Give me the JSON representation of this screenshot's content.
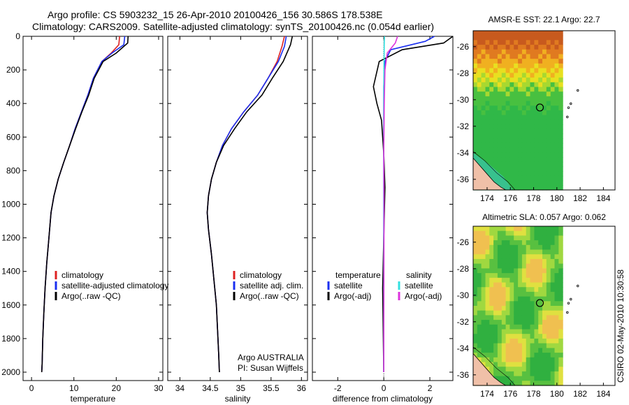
{
  "header": {
    "title_line1": "Argo profile: CS 5903232_15 26-Apr-2010 20100426_156 30.586S 178.538E",
    "title_line2": "Climatology: CARS2009. Satellite-adjusted climatology: synTS_20100426.nc (0.054d earlier)"
  },
  "footer": {
    "program": "Argo AUSTRALIA",
    "pi": "PI: Susan Wijffels",
    "stamp": "CSIRO 02-May-2010 10:30:58"
  },
  "colors": {
    "climatology": "#dd2222",
    "satellite": "#1a2ff0",
    "argo": "#000000",
    "argo_salinity": "#dd33dd",
    "satellite_salinity": "#33e0e0"
  },
  "chart_data": [
    {
      "type": "line",
      "panel": "temperature",
      "xlabel": "temperature",
      "ylabel": "",
      "xlim": [
        -2,
        31
      ],
      "ylim": [
        2050,
        0
      ],
      "y_inverted": true,
      "xticks": [
        "0",
        "10",
        "20",
        "30"
      ],
      "yticks": [
        "0",
        "200",
        "400",
        "600",
        "800",
        "1000",
        "1200",
        "1400",
        "1600",
        "1800",
        "2000"
      ],
      "legend": [
        "climatology",
        "satellite-adjusted climatology",
        "Argo(..raw -QC)"
      ],
      "series": [
        {
          "name": "climatology",
          "color": "#dd2222",
          "x": [
            20.8,
            20.6,
            18.8,
            16.6,
            14.6,
            13.3,
            11.8,
            10.3,
            9.0,
            7.6,
            6.3,
            5.3,
            4.6,
            4.1,
            3.6,
            3.2,
            2.9,
            2.65,
            2.5,
            2.4
          ],
          "y": [
            0,
            50,
            100,
            150,
            250,
            350,
            450,
            550,
            650,
            750,
            850,
            950,
            1050,
            1200,
            1350,
            1500,
            1650,
            1800,
            1950,
            2000
          ]
        },
        {
          "name": "satellite-adjusted climatology",
          "color": "#1a2ff0",
          "x": [
            22.0,
            21.8,
            19.0,
            16.6,
            14.6,
            13.3,
            11.8,
            10.3,
            9.0,
            7.6,
            6.3,
            5.3,
            4.6,
            4.1,
            3.6,
            3.2,
            2.9,
            2.65,
            2.5,
            2.4
          ],
          "y": [
            0,
            50,
            100,
            150,
            250,
            350,
            450,
            550,
            650,
            750,
            850,
            950,
            1050,
            1200,
            1350,
            1500,
            1650,
            1800,
            1950,
            2000
          ]
        },
        {
          "name": "Argo(..raw -QC)",
          "color": "#000000",
          "x": [
            22.8,
            22.7,
            20.0,
            16.9,
            14.8,
            13.5,
            11.9,
            10.4,
            9.0,
            7.6,
            6.3,
            5.3,
            4.6,
            4.1,
            3.6,
            3.2,
            2.9,
            2.65,
            2.5,
            2.4
          ],
          "y": [
            0,
            40,
            100,
            150,
            250,
            350,
            450,
            550,
            650,
            750,
            850,
            950,
            1050,
            1200,
            1350,
            1500,
            1650,
            1800,
            1950,
            2000
          ]
        }
      ]
    },
    {
      "type": "line",
      "panel": "salinity",
      "xlabel": "salinity",
      "xlim": [
        33.8,
        36.1
      ],
      "ylim": [
        2050,
        0
      ],
      "y_inverted": true,
      "xticks": [
        "34",
        "34.5",
        "35",
        "35.5",
        "36"
      ],
      "legend": [
        "climatology",
        "satellite adj. clim.",
        "Argo(..raw -QC)"
      ],
      "series": [
        {
          "name": "climatology",
          "color": "#dd2222",
          "x": [
            35.72,
            35.68,
            35.6,
            35.45,
            35.28,
            35.05,
            34.85,
            34.7,
            34.6,
            34.52,
            34.47,
            34.45,
            34.47,
            34.52,
            34.56,
            34.6,
            34.62,
            34.64,
            34.65
          ],
          "y": [
            0,
            60,
            150,
            250,
            350,
            450,
            550,
            650,
            750,
            850,
            950,
            1050,
            1150,
            1300,
            1450,
            1600,
            1750,
            1900,
            2000
          ]
        },
        {
          "name": "satellite adj. clim.",
          "color": "#1a2ff0",
          "x": [
            35.75,
            35.72,
            35.62,
            35.45,
            35.28,
            35.05,
            34.85,
            34.7,
            34.6,
            34.52,
            34.47,
            34.45,
            34.47,
            34.52,
            34.56,
            34.6,
            34.62,
            34.64,
            34.65
          ],
          "y": [
            0,
            60,
            150,
            250,
            350,
            450,
            550,
            650,
            750,
            850,
            950,
            1050,
            1150,
            1300,
            1450,
            1600,
            1750,
            1900,
            2000
          ]
        },
        {
          "name": "Argo(..raw -QC)",
          "color": "#000000",
          "x": [
            35.85,
            35.82,
            35.7,
            35.52,
            35.35,
            35.1,
            34.9,
            34.72,
            34.6,
            34.52,
            34.47,
            34.45,
            34.47,
            34.52,
            34.56,
            34.6,
            34.62,
            34.64,
            34.65
          ],
          "y": [
            0,
            50,
            150,
            250,
            350,
            450,
            550,
            650,
            750,
            850,
            950,
            1050,
            1150,
            1300,
            1450,
            1600,
            1750,
            1900,
            2000
          ]
        }
      ]
    },
    {
      "type": "line",
      "panel": "difference",
      "xlabel": "difference from climatology",
      "xlim": [
        -3.1,
        3.0
      ],
      "ylim": [
        2050,
        0
      ],
      "y_inverted": true,
      "xticks": [
        "-2",
        "0",
        "2"
      ],
      "legend_temperature_header": "temperature",
      "legend_salinity_header": "salinity",
      "legend": [
        "satellite",
        "Argo(-adj)",
        "satellite",
        "Argo(-adj)"
      ],
      "series": [
        {
          "name": "temperature satellite",
          "color": "#1a2ff0",
          "x": [
            2.2,
            1.8,
            0.3,
            0.05,
            0.0,
            0.0,
            0.0,
            0.0,
            0.0
          ],
          "y": [
            0,
            30,
            80,
            150,
            300,
            600,
            1000,
            1500,
            2000
          ]
        },
        {
          "name": "temperature Argo(-adj)",
          "color": "#000000",
          "x": [
            3.0,
            2.6,
            0.8,
            -0.2,
            -0.45,
            -0.3,
            -0.1,
            0.0,
            0.05,
            0.0,
            -0.05,
            0.0
          ],
          "y": [
            0,
            40,
            80,
            150,
            300,
            400,
            500,
            700,
            900,
            1200,
            1500,
            2000
          ]
        },
        {
          "name": "salinity satellite",
          "color": "#33e0e0",
          "x": [
            0.03,
            0.02,
            0.01,
            0.0,
            0.0,
            0.0,
            0.0,
            0.0
          ],
          "y": [
            0,
            50,
            150,
            300,
            600,
            1000,
            1500,
            2000
          ]
        },
        {
          "name": "salinity Argo(-adj)",
          "color": "#dd33dd",
          "x": [
            0.6,
            0.5,
            0.15,
            0.05,
            0.02,
            0.0,
            0.01,
            0.0
          ],
          "y": [
            0,
            40,
            100,
            200,
            400,
            700,
            1000,
            2000
          ]
        }
      ]
    }
  ],
  "maps": [
    {
      "title": "AMSR-E SST: 22.1  Argo: 22.7",
      "type": "heatmap",
      "xticks": [
        "174",
        "176",
        "178",
        "180",
        "182",
        "184"
      ],
      "yticks": [
        "-26",
        "-28",
        "-30",
        "-32",
        "-34",
        "-36"
      ],
      "xlim": [
        172.8,
        185.0
      ],
      "ylim": [
        -36.8,
        -24.8
      ],
      "float_position": {
        "lon": 178.538,
        "lat": -30.586
      }
    },
    {
      "title": "Altimetric SLA: 0.057  Argo: 0.062",
      "type": "heatmap",
      "xticks": [
        "174",
        "176",
        "178",
        "180",
        "182",
        "184"
      ],
      "yticks": [
        "-26",
        "-28",
        "-30",
        "-32",
        "-34",
        "-36"
      ],
      "xlim": [
        172.8,
        185.0
      ],
      "ylim": [
        -36.8,
        -24.8
      ],
      "float_position": {
        "lon": 178.538,
        "lat": -30.586
      }
    }
  ]
}
